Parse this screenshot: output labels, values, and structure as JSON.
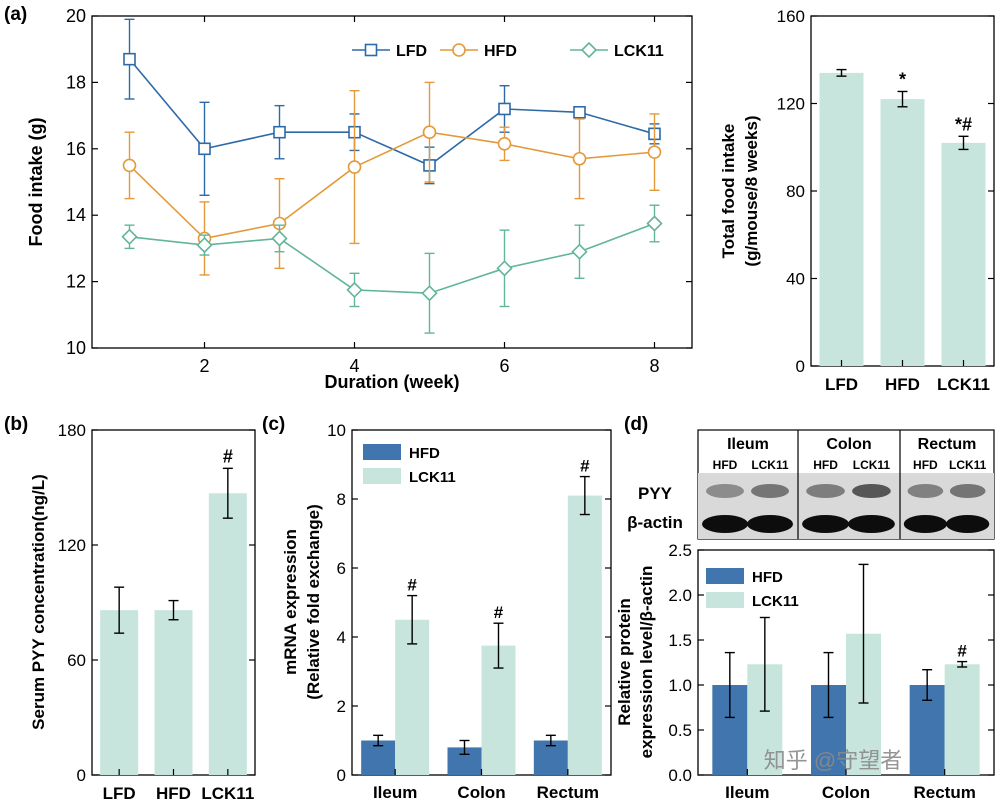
{
  "colors": {
    "lfd": "#2e6aa8",
    "hfd": "#e39a3a",
    "lck11": "#62b59a",
    "bar_light": "#c7e5dc",
    "bar_dark": "#4175ad",
    "blot_bg": "#d9d9d9"
  },
  "panel_labels": {
    "a": "(a)",
    "b": "(b)",
    "c": "(c)",
    "d": "(d)"
  },
  "watermark": "知乎 @守望者",
  "chart_data": [
    {
      "id": "a1",
      "type": "line",
      "xlabel": "Duration (week)",
      "ylabel": "Food intake (g)",
      "x": [
        1,
        2,
        3,
        4,
        5,
        6,
        7,
        8
      ],
      "xlim": [
        0.5,
        8.5
      ],
      "ylim": [
        10,
        20
      ],
      "xticks": [
        2,
        4,
        6,
        8
      ],
      "yticks": [
        10,
        12,
        14,
        16,
        18,
        20
      ],
      "legend_position": "top-right",
      "series": [
        {
          "name": "LFD",
          "color_key": "lfd",
          "marker": "square",
          "values": [
            18.7,
            16.0,
            16.5,
            16.5,
            15.5,
            17.2,
            17.1,
            16.45
          ],
          "errors": [
            1.2,
            1.4,
            0.8,
            0.55,
            0.55,
            0.7,
            0.12,
            0.3
          ]
        },
        {
          "name": "HFD",
          "color_key": "hfd",
          "marker": "circle",
          "values": [
            15.5,
            13.3,
            13.75,
            15.45,
            16.5,
            16.15,
            15.7,
            15.9
          ],
          "errors": [
            1.0,
            1.1,
            1.35,
            2.3,
            1.5,
            0.5,
            1.2,
            1.15
          ]
        },
        {
          "name": "LCK11",
          "color_key": "lck11",
          "marker": "diamond",
          "values": [
            13.35,
            13.1,
            13.3,
            11.75,
            11.65,
            12.4,
            12.9,
            13.75
          ],
          "errors": [
            0.35,
            0.3,
            0.4,
            0.5,
            1.2,
            1.15,
            0.8,
            0.55
          ]
        }
      ]
    },
    {
      "id": "a2",
      "type": "bar",
      "ylabel_line1": "Total food intake",
      "ylabel_line2": "(g/mouse/8 weeks)",
      "categories": [
        "LFD",
        "HFD",
        "LCK11"
      ],
      "values": [
        134,
        122,
        102
      ],
      "errors": [
        1.5,
        3.5,
        3
      ],
      "annotations": [
        "",
        "*",
        "*#"
      ],
      "ylim": [
        0,
        160
      ],
      "yticks": [
        0,
        40,
        80,
        120,
        160
      ]
    },
    {
      "id": "b",
      "type": "bar",
      "ylabel": "Serum PYY concentration(ng/L)",
      "categories": [
        "LFD",
        "HFD",
        "LCK11"
      ],
      "values": [
        86,
        86,
        147
      ],
      "errors": [
        12,
        5,
        13
      ],
      "annotations": [
        "",
        "",
        "#"
      ],
      "ylim": [
        0,
        180
      ],
      "yticks": [
        0,
        60,
        120,
        180
      ]
    },
    {
      "id": "c",
      "type": "bar",
      "ylabel_line1": "mRNA expression",
      "ylabel_line2": "(Relative fold exchange)",
      "categories": [
        "Ileum",
        "Colon",
        "Rectum"
      ],
      "ylim": [
        0,
        10
      ],
      "yticks": [
        0,
        2,
        4,
        6,
        8,
        10
      ],
      "legend_position": "top-left",
      "series": [
        {
          "name": "HFD",
          "color_key": "bar_dark",
          "values": [
            1.0,
            0.8,
            1.0
          ],
          "errors": [
            0.15,
            0.2,
            0.15
          ],
          "annotations": [
            "",
            "",
            ""
          ]
        },
        {
          "name": "LCK11",
          "color_key": "bar_light",
          "values": [
            4.5,
            3.75,
            8.1
          ],
          "errors": [
            0.7,
            0.65,
            0.55
          ],
          "annotations": [
            "#",
            "#",
            "#"
          ]
        }
      ]
    },
    {
      "id": "d",
      "type": "bar",
      "ylabel_line1": "Relative protein",
      "ylabel_line2": "expression level/β-actin",
      "categories": [
        "Ileum",
        "Colon",
        "Rectum"
      ],
      "ylim": [
        0,
        2.5
      ],
      "yticks": [
        0.0,
        0.5,
        1.0,
        1.5,
        2.0,
        2.5
      ],
      "legend_position": "top-left",
      "series": [
        {
          "name": "HFD",
          "color_key": "bar_dark",
          "values": [
            1.0,
            1.0,
            1.0
          ],
          "errors": [
            0.36,
            0.36,
            0.17
          ],
          "annotations": [
            "",
            "",
            ""
          ]
        },
        {
          "name": "LCK11",
          "color_key": "bar_light",
          "values": [
            1.23,
            1.57,
            1.23
          ],
          "errors": [
            0.52,
            0.77,
            0.03
          ],
          "annotations": [
            "",
            "",
            "#"
          ]
        }
      ]
    }
  ],
  "blot": {
    "tissues": [
      "Ileum",
      "Colon",
      "Rectum"
    ],
    "lanes": [
      "HFD",
      "LCK11"
    ],
    "rows": [
      "PYY",
      "β-actin"
    ]
  }
}
